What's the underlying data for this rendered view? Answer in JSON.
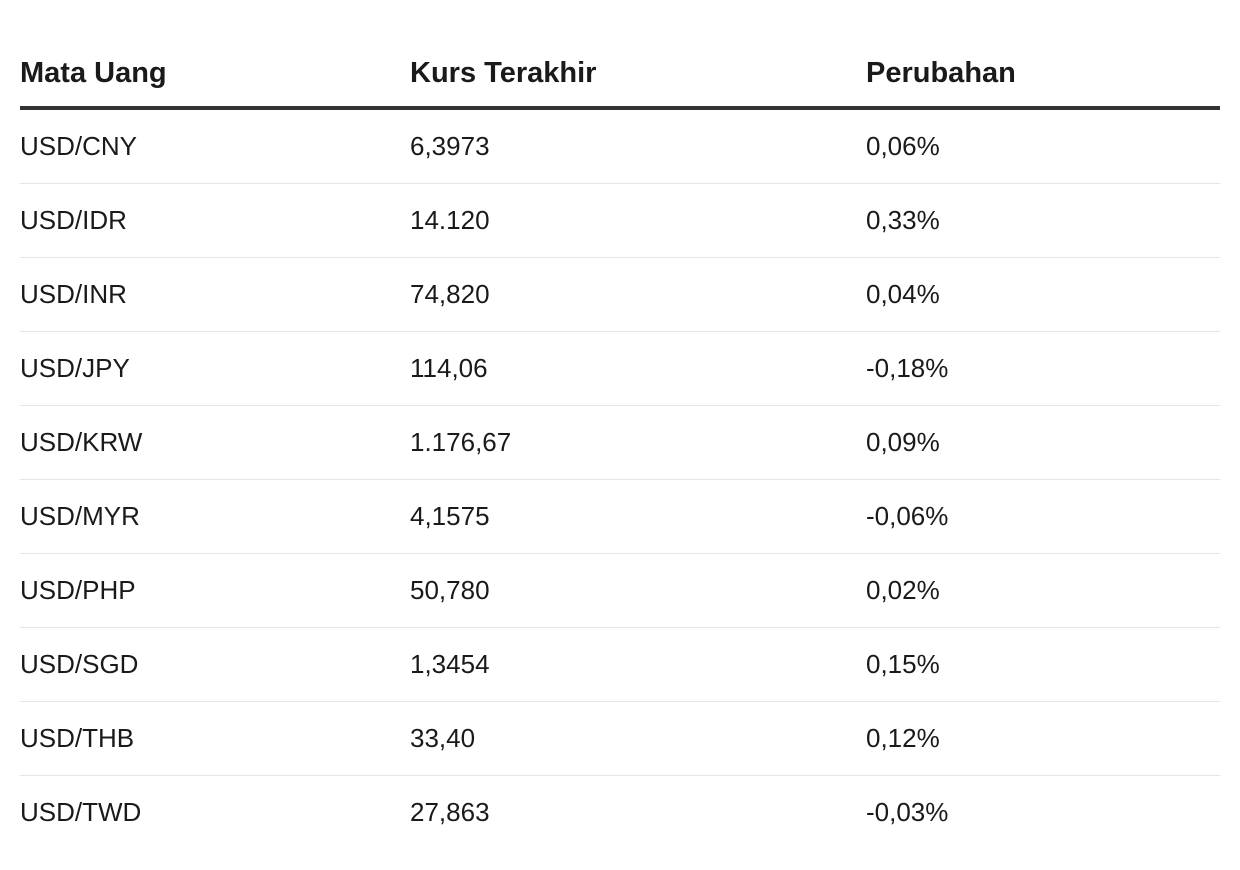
{
  "table": {
    "headers": [
      "Mata Uang",
      "Kurs Terakhir",
      "Perubahan"
    ],
    "rows": [
      [
        "USD/CNY",
        "6,3973",
        "0,06%"
      ],
      [
        "USD/IDR",
        "14.120",
        "0,33%"
      ],
      [
        "USD/INR",
        "74,820",
        "0,04%"
      ],
      [
        "USD/JPY",
        "114,06",
        "-0,18%"
      ],
      [
        "USD/KRW",
        "1.176,67",
        "0,09%"
      ],
      [
        "USD/MYR",
        "4,1575",
        "-0,06%"
      ],
      [
        "USD/PHP",
        "50,780",
        "0,02%"
      ],
      [
        "USD/SGD",
        "1,3454",
        "0,15%"
      ],
      [
        "USD/THB",
        "33,40",
        "0,12%"
      ],
      [
        "USD/TWD",
        "27,863",
        "-0,03%"
      ]
    ]
  }
}
